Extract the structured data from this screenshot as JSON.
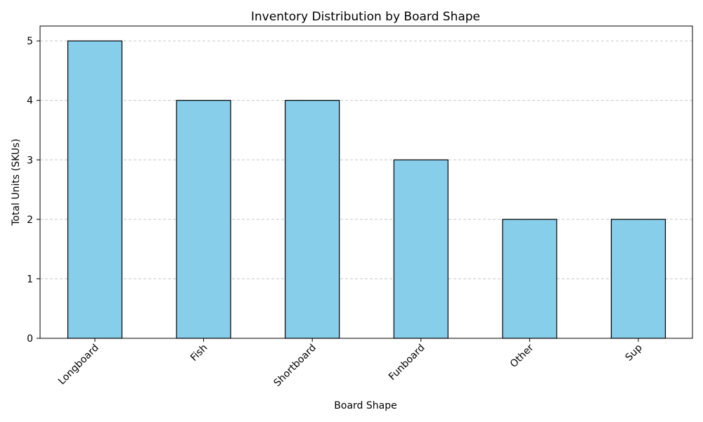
{
  "chart_data": {
    "type": "bar",
    "title": "Inventory Distribution by Board Shape",
    "xlabel": "Board Shape",
    "ylabel": "Total Units (SKUs)",
    "categories": [
      "Longboard",
      "Fish",
      "Shortboard",
      "Funboard",
      "Other",
      "Sup"
    ],
    "values": [
      5,
      4,
      4,
      3,
      2,
      2
    ],
    "ylim": [
      0,
      5.25
    ],
    "yticks": [
      "0",
      "1",
      "2",
      "3",
      "4",
      "5"
    ],
    "grid": true,
    "bar_color": "#87ceeb",
    "edge_color": "#000000"
  }
}
